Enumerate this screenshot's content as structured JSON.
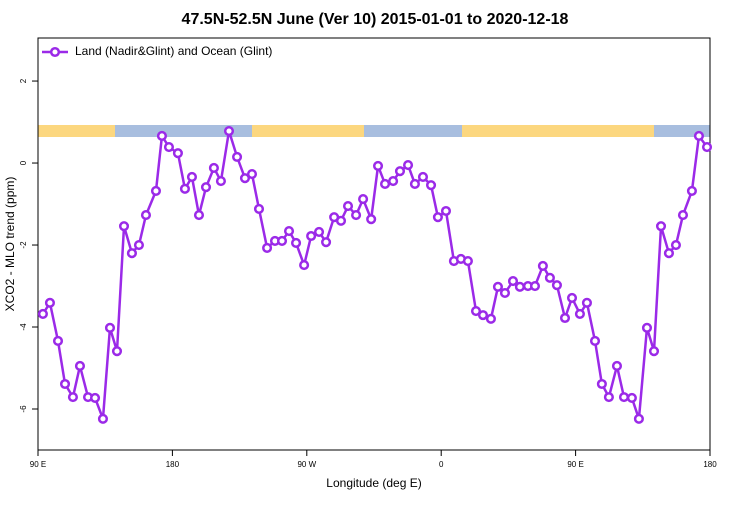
{
  "chart_data": {
    "type": "line",
    "title": "47.5N-52.5N June (Ver 10)   2015-01-01 to 2020-12-18",
    "x_label": "Longitude (deg E)",
    "y_label": "XCO2 - MLO trend (ppm)",
    "xlim": [
      90,
      540
    ],
    "ylim": [
      -7.0,
      3.05
    ],
    "xticks": [
      {
        "value": 90,
        "label": "90 E"
      },
      {
        "value": 180,
        "label": "180"
      },
      {
        "value": 270,
        "label": "90 W"
      },
      {
        "value": 360,
        "label": "0"
      },
      {
        "value": 450,
        "label": "90 E"
      },
      {
        "value": 540,
        "label": "180"
      }
    ],
    "yticks": [
      -6,
      -4,
      -2,
      0,
      2
    ],
    "legend_position": "top-left",
    "series": [
      {
        "name": "Land (Nadir&Glint) and Ocean (Glint)",
        "color": "#9b2ae8",
        "x": [
          93.3,
          98.0,
          103.4,
          108.1,
          113.4,
          118.1,
          123.5,
          128.2,
          133.5,
          138.2,
          142.9,
          147.6,
          152.9,
          157.6,
          162.3,
          169.0,
          173.0,
          177.7,
          183.7,
          188.4,
          193.1,
          197.8,
          202.5,
          207.8,
          212.5,
          217.9,
          223.3,
          228.6,
          233.3,
          238.0,
          243.4,
          248.7,
          253.4,
          258.1,
          262.8,
          268.2,
          272.9,
          278.2,
          282.9,
          288.3,
          292.9,
          297.6,
          303.0,
          307.7,
          313.1,
          317.7,
          322.4,
          327.8,
          332.4,
          337.8,
          342.4,
          347.8,
          353.2,
          357.8,
          363.2,
          368.5,
          373.2,
          377.9,
          383.3,
          388.0,
          393.3,
          398.0,
          402.7,
          408.1,
          412.7,
          418.1,
          422.8,
          428.1,
          432.8,
          437.5,
          442.9,
          447.6,
          452.9,
          457.6,
          463.0,
          467.6,
          472.3,
          477.7,
          482.4,
          487.7,
          492.4,
          497.8,
          502.5,
          507.2,
          512.5,
          517.2,
          521.9,
          527.9,
          532.6,
          538.0
        ],
        "values": [
          -3.68,
          -3.41,
          -4.34,
          -5.39,
          -5.71,
          -4.95,
          -5.71,
          -5.73,
          -6.24,
          -4.02,
          -4.59,
          -1.54,
          -2.2,
          -2.0,
          -1.27,
          -0.68,
          0.66,
          0.39,
          0.24,
          -0.63,
          -0.34,
          -1.27,
          -0.59,
          -0.12,
          -0.44,
          0.78,
          0.15,
          -0.37,
          -0.27,
          -1.12,
          -2.07,
          -1.9,
          -1.9,
          -1.66,
          -1.95,
          -2.49,
          -1.78,
          -1.68,
          -1.93,
          -1.32,
          -1.41,
          -1.05,
          -1.27,
          -0.88,
          -1.37,
          -0.07,
          -0.51,
          -0.44,
          -0.2,
          -0.05,
          -0.51,
          -0.34,
          -0.54,
          -1.32,
          -1.17,
          -2.39,
          -2.34,
          -2.39,
          -3.61,
          -3.71,
          -3.8,
          -3.02,
          -3.17,
          -2.88,
          -3.02,
          -3.0,
          -3.0,
          -2.51,
          -2.8,
          -2.98,
          -3.78,
          -3.29,
          -3.68,
          -3.41,
          -4.34,
          -5.39,
          -5.71,
          -4.95,
          -5.71,
          -5.73,
          -6.24,
          -4.02,
          -4.59,
          -1.54,
          -2.2,
          -2.0,
          -1.27,
          -0.68,
          0.66,
          0.39
        ]
      }
    ]
  }
}
